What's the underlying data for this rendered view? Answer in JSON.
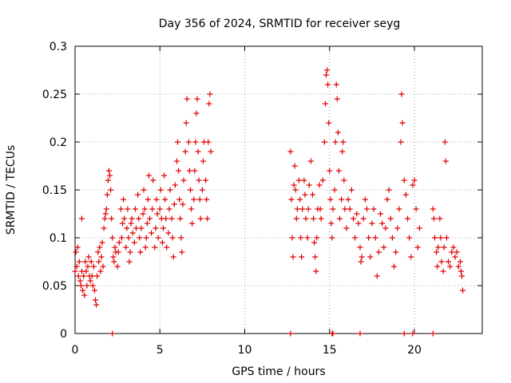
{
  "chart_data": {
    "type": "scatter",
    "title": "Day 356 of 2024, SRMTID for receiver seyg",
    "xlabel": "GPS time / hours",
    "ylabel": "SRMTID / TECUs",
    "xlim": [
      0,
      24
    ],
    "ylim": [
      0,
      0.3
    ],
    "xticks": [
      0,
      5,
      10,
      15,
      20
    ],
    "yticks": [
      0,
      0.05,
      0.1,
      0.15,
      0.2,
      0.25,
      0.3
    ],
    "xtick_labels": [
      "0",
      "5",
      "10",
      "15",
      "20"
    ],
    "ytick_labels": [
      "0",
      "0.05",
      "0.1",
      "0.15",
      "0.2",
      "0.25",
      "0.3"
    ],
    "grid": true,
    "marker": "+",
    "color": "#e00000",
    "series": [
      {
        "name": "SRMTID",
        "points": [
          [
            0.0,
            0.065
          ],
          [
            0.05,
            0.085
          ],
          [
            0.1,
            0.07
          ],
          [
            0.15,
            0.09
          ],
          [
            0.2,
            0.06
          ],
          [
            0.25,
            0.075
          ],
          [
            0.3,
            0.055
          ],
          [
            0.35,
            0.05
          ],
          [
            0.4,
            0.12
          ],
          [
            0.4,
            0.065
          ],
          [
            0.45,
            0.045
          ],
          [
            0.5,
            0.06
          ],
          [
            0.55,
            0.04
          ],
          [
            0.6,
            0.075
          ],
          [
            0.65,
            0.065
          ],
          [
            0.7,
            0.05
          ],
          [
            0.75,
            0.07
          ],
          [
            0.8,
            0.08
          ],
          [
            0.85,
            0.06
          ],
          [
            0.9,
            0.055
          ],
          [
            0.95,
            0.075
          ],
          [
            1.0,
            0.06
          ],
          [
            1.05,
            0.05
          ],
          [
            1.1,
            0.07
          ],
          [
            1.15,
            0.045
          ],
          [
            1.2,
            0.035
          ],
          [
            1.25,
            0.03
          ],
          [
            1.3,
            0.06
          ],
          [
            1.35,
            0.085
          ],
          [
            1.4,
            0.075
          ],
          [
            1.45,
            0.09
          ],
          [
            1.5,
            0.065
          ],
          [
            1.55,
            0.08
          ],
          [
            1.6,
            0.095
          ],
          [
            1.65,
            0.07
          ],
          [
            1.7,
            0.11
          ],
          [
            1.75,
            0.12
          ],
          [
            1.8,
            0.125
          ],
          [
            1.85,
            0.13
          ],
          [
            1.9,
            0.145
          ],
          [
            1.95,
            0.16
          ],
          [
            2.0,
            0.17
          ],
          [
            2.05,
            0.165
          ],
          [
            2.1,
            0.15
          ],
          [
            2.15,
            0.12
          ],
          [
            2.2,
            0.1
          ],
          [
            2.25,
            0.08
          ],
          [
            2.3,
            0.075
          ],
          [
            2.35,
            0.09
          ],
          [
            2.4,
            0.085
          ],
          [
            2.5,
            0.07
          ],
          [
            2.55,
            0.085
          ],
          [
            2.6,
            0.095
          ],
          [
            2.7,
            0.13
          ],
          [
            2.75,
            0.1
          ],
          [
            2.8,
            0.115
          ],
          [
            2.85,
            0.14
          ],
          [
            2.9,
            0.12
          ],
          [
            3.0,
            0.09
          ],
          [
            3.05,
            0.11
          ],
          [
            3.1,
            0.13
          ],
          [
            3.15,
            0.1
          ],
          [
            3.2,
            0.075
          ],
          [
            3.25,
            0.085
          ],
          [
            3.3,
            0.115
          ],
          [
            3.35,
            0.12
          ],
          [
            3.4,
            0.105
          ],
          [
            3.5,
            0.095
          ],
          [
            3.55,
            0.13
          ],
          [
            3.6,
            0.11
          ],
          [
            3.7,
            0.145
          ],
          [
            3.75,
            0.12
          ],
          [
            3.8,
            0.1
          ],
          [
            3.85,
            0.085
          ],
          [
            3.9,
            0.11
          ],
          [
            4.0,
            0.125
          ],
          [
            4.05,
            0.15
          ],
          [
            4.1,
            0.13
          ],
          [
            4.15,
            0.09
          ],
          [
            4.2,
            0.1
          ],
          [
            4.25,
            0.115
          ],
          [
            4.3,
            0.14
          ],
          [
            4.35,
            0.165
          ],
          [
            4.4,
            0.12
          ],
          [
            4.5,
            0.105
          ],
          [
            4.55,
            0.13
          ],
          [
            4.6,
            0.16
          ],
          [
            4.7,
            0.09
          ],
          [
            4.75,
            0.11
          ],
          [
            4.8,
            0.14
          ],
          [
            4.85,
            0.125
          ],
          [
            4.9,
            0.1
          ],
          [
            5.0,
            0.13
          ],
          [
            5.05,
            0.15
          ],
          [
            5.1,
            0.12
          ],
          [
            5.15,
            0.095
          ],
          [
            5.2,
            0.11
          ],
          [
            5.25,
            0.165
          ],
          [
            5.3,
            0.14
          ],
          [
            5.35,
            0.12
          ],
          [
            5.4,
            0.09
          ],
          [
            5.5,
            0.105
          ],
          [
            5.55,
            0.13
          ],
          [
            5.6,
            0.15
          ],
          [
            5.7,
            0.12
          ],
          [
            5.75,
            0.1
          ],
          [
            5.8,
            0.08
          ],
          [
            5.85,
            0.135
          ],
          [
            5.9,
            0.155
          ],
          [
            6.0,
            0.18
          ],
          [
            6.05,
            0.2
          ],
          [
            6.1,
            0.17
          ],
          [
            6.15,
            0.14
          ],
          [
            6.2,
            0.12
          ],
          [
            6.25,
            0.1
          ],
          [
            6.3,
            0.085
          ],
          [
            6.35,
            0.135
          ],
          [
            6.4,
            0.16
          ],
          [
            6.5,
            0.19
          ],
          [
            6.55,
            0.22
          ],
          [
            6.6,
            0.245
          ],
          [
            6.7,
            0.2
          ],
          [
            6.75,
            0.17
          ],
          [
            6.8,
            0.15
          ],
          [
            6.85,
            0.13
          ],
          [
            6.9,
            0.115
          ],
          [
            7.0,
            0.14
          ],
          [
            7.05,
            0.17
          ],
          [
            7.1,
            0.2
          ],
          [
            7.15,
            0.23
          ],
          [
            7.2,
            0.245
          ],
          [
            7.25,
            0.19
          ],
          [
            7.3,
            0.16
          ],
          [
            7.35,
            0.14
          ],
          [
            7.4,
            0.12
          ],
          [
            7.5,
            0.15
          ],
          [
            7.55,
            0.18
          ],
          [
            7.6,
            0.2
          ],
          [
            7.7,
            0.16
          ],
          [
            7.75,
            0.14
          ],
          [
            7.8,
            0.12
          ],
          [
            7.85,
            0.2
          ],
          [
            7.9,
            0.24
          ],
          [
            7.95,
            0.25
          ],
          [
            8.0,
            0.19
          ],
          [
            12.7,
            0.19
          ],
          [
            12.75,
            0.14
          ],
          [
            12.8,
            0.1
          ],
          [
            12.85,
            0.08
          ],
          [
            12.9,
            0.155
          ],
          [
            12.95,
            0.175
          ],
          [
            13.0,
            0.15
          ],
          [
            13.05,
            0.12
          ],
          [
            13.1,
            0.13
          ],
          [
            13.2,
            0.16
          ],
          [
            13.25,
            0.14
          ],
          [
            13.3,
            0.1
          ],
          [
            13.35,
            0.08
          ],
          [
            13.4,
            0.13
          ],
          [
            13.5,
            0.16
          ],
          [
            13.55,
            0.145
          ],
          [
            13.6,
            0.12
          ],
          [
            13.7,
            0.1
          ],
          [
            13.75,
            0.13
          ],
          [
            13.8,
            0.155
          ],
          [
            13.9,
            0.18
          ],
          [
            14.0,
            0.145
          ],
          [
            14.05,
            0.12
          ],
          [
            14.1,
            0.095
          ],
          [
            14.15,
            0.08
          ],
          [
            14.2,
            0.065
          ],
          [
            14.25,
            0.1
          ],
          [
            14.3,
            0.13
          ],
          [
            14.4,
            0.155
          ],
          [
            14.45,
            0.13
          ],
          [
            14.5,
            0.12
          ],
          [
            14.6,
            0.16
          ],
          [
            14.7,
            0.2
          ],
          [
            14.75,
            0.24
          ],
          [
            14.8,
            0.27
          ],
          [
            14.85,
            0.275
          ],
          [
            14.9,
            0.26
          ],
          [
            14.95,
            0.22
          ],
          [
            15.0,
            0.17
          ],
          [
            15.05,
            0.14
          ],
          [
            15.1,
            0.115
          ],
          [
            15.15,
            0.1
          ],
          [
            15.2,
            0.13
          ],
          [
            15.3,
            0.15
          ],
          [
            15.35,
            0.2
          ],
          [
            15.4,
            0.26
          ],
          [
            15.45,
            0.245
          ],
          [
            15.5,
            0.21
          ],
          [
            15.55,
            0.17
          ],
          [
            15.6,
            0.12
          ],
          [
            15.7,
            0.14
          ],
          [
            15.75,
            0.19
          ],
          [
            15.8,
            0.2
          ],
          [
            15.85,
            0.16
          ],
          [
            15.9,
            0.13
          ],
          [
            16.0,
            0.11
          ],
          [
            16.1,
            0.14
          ],
          [
            16.2,
            0.13
          ],
          [
            16.3,
            0.15
          ],
          [
            16.4,
            0.12
          ],
          [
            16.5,
            0.1
          ],
          [
            16.6,
            0.125
          ],
          [
            16.7,
            0.115
          ],
          [
            16.8,
            0.09
          ],
          [
            16.85,
            0.075
          ],
          [
            16.9,
            0.08
          ],
          [
            17.0,
            0.12
          ],
          [
            17.1,
            0.14
          ],
          [
            17.2,
            0.13
          ],
          [
            17.3,
            0.1
          ],
          [
            17.4,
            0.08
          ],
          [
            17.5,
            0.115
          ],
          [
            17.6,
            0.13
          ],
          [
            17.7,
            0.1
          ],
          [
            17.8,
            0.06
          ],
          [
            17.9,
            0.085
          ],
          [
            18.0,
            0.125
          ],
          [
            18.1,
            0.115
          ],
          [
            18.2,
            0.09
          ],
          [
            18.3,
            0.11
          ],
          [
            18.4,
            0.14
          ],
          [
            18.5,
            0.15
          ],
          [
            18.6,
            0.12
          ],
          [
            18.7,
            0.1
          ],
          [
            18.8,
            0.07
          ],
          [
            18.9,
            0.085
          ],
          [
            19.0,
            0.11
          ],
          [
            19.1,
            0.13
          ],
          [
            19.2,
            0.2
          ],
          [
            19.25,
            0.25
          ],
          [
            19.3,
            0.22
          ],
          [
            19.4,
            0.16
          ],
          [
            19.5,
            0.145
          ],
          [
            19.6,
            0.12
          ],
          [
            19.7,
            0.1
          ],
          [
            19.8,
            0.08
          ],
          [
            19.9,
            0.155
          ],
          [
            20.0,
            0.16
          ],
          [
            20.1,
            0.13
          ],
          [
            20.2,
            0.09
          ],
          [
            20.3,
            0.11
          ],
          [
            21.1,
            0.13
          ],
          [
            21.15,
            0.12
          ],
          [
            21.2,
            0.1
          ],
          [
            21.3,
            0.085
          ],
          [
            21.35,
            0.07
          ],
          [
            21.4,
            0.09
          ],
          [
            21.5,
            0.12
          ],
          [
            21.55,
            0.1
          ],
          [
            21.6,
            0.075
          ],
          [
            21.7,
            0.065
          ],
          [
            21.75,
            0.09
          ],
          [
            21.8,
            0.2
          ],
          [
            21.85,
            0.18
          ],
          [
            21.9,
            0.1
          ],
          [
            22.0,
            0.075
          ],
          [
            22.1,
            0.07
          ],
          [
            22.2,
            0.085
          ],
          [
            22.3,
            0.09
          ],
          [
            22.4,
            0.08
          ],
          [
            22.5,
            0.085
          ],
          [
            22.6,
            0.07
          ],
          [
            22.7,
            0.075
          ],
          [
            22.75,
            0.065
          ],
          [
            22.8,
            0.06
          ],
          [
            22.85,
            0.045
          ]
        ]
      }
    ],
    "zero_markers_x": [
      2.2,
      12.7,
      15.15,
      15.2,
      16.8,
      19.4,
      19.9,
      21.1
    ]
  }
}
